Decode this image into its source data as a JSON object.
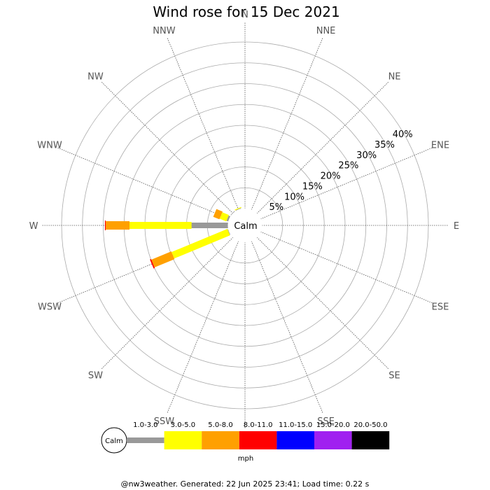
{
  "title": "Wind rose for 15 Dec 2021",
  "footer": "@nw3weather. Generated: 22 Jun 2025 23:41; Load time: 0.22 s",
  "calm_label": "Calm",
  "legend": {
    "calm_label": "Calm",
    "unit": "mph",
    "bins": [
      {
        "label": "1.0-3.0",
        "color": "#999999"
      },
      {
        "label": "3.0-5.0",
        "color": "#ffff00"
      },
      {
        "label": "5.0-8.0",
        "color": "#ffa000"
      },
      {
        "label": "8.0-11.0",
        "color": "#ff0000"
      },
      {
        "label": "11.0-15.0",
        "color": "#0000ff"
      },
      {
        "label": "15.0-20.0",
        "color": "#a020f0"
      },
      {
        "label": "20.0-50.0",
        "color": "#000000"
      }
    ]
  },
  "chart_data": {
    "type": "windrose",
    "title": "Wind rose for 15 Dec 2021",
    "unit": "mph",
    "directions": [
      "N",
      "NNE",
      "NE",
      "ENE",
      "E",
      "ESE",
      "SE",
      "SSE",
      "S",
      "SSW",
      "SW",
      "WSW",
      "W",
      "WNW",
      "NW",
      "NNW"
    ],
    "radial_ticks": [
      "5%",
      "10%",
      "15%",
      "20%",
      "25%",
      "30%",
      "35%",
      "40%"
    ],
    "radial_max": 40,
    "speed_bins": [
      "1.0-3.0",
      "3.0-5.0",
      "5.0-8.0",
      "8.0-11.0",
      "11.0-15.0",
      "15.0-20.0",
      "20.0-50.0"
    ],
    "series": [
      {
        "name": "1.0-3.0",
        "color": "#999999",
        "values": [
          0,
          0,
          0,
          0,
          0,
          0,
          0,
          0,
          0,
          0,
          0,
          0.2,
          8.8,
          0.5,
          0.2,
          0.2
        ]
      },
      {
        "name": "3.0-5.0",
        "color": "#ffff00",
        "values": [
          0,
          0,
          0,
          0,
          0,
          0,
          0,
          0,
          0,
          0,
          0,
          14.5,
          14.9,
          1.7,
          0,
          0.2
        ]
      },
      {
        "name": "5.0-8.0",
        "color": "#ffa000",
        "values": [
          0,
          0,
          0,
          0,
          0,
          0,
          0,
          0,
          0,
          0,
          0,
          5.2,
          5.7,
          1.6,
          0,
          0
        ]
      },
      {
        "name": "8.0-11.0",
        "color": "#ff0000",
        "values": [
          0,
          0,
          0,
          0,
          0,
          0,
          0,
          0,
          0,
          0,
          0,
          0.3,
          0.2,
          0,
          0,
          0
        ]
      },
      {
        "name": "11.0-15.0",
        "color": "#0000ff",
        "values": [
          0,
          0,
          0,
          0,
          0,
          0,
          0,
          0,
          0,
          0,
          0,
          0,
          0,
          0,
          0,
          0
        ]
      },
      {
        "name": "15.0-20.0",
        "color": "#a020f0",
        "values": [
          0,
          0,
          0,
          0,
          0,
          0,
          0,
          0,
          0,
          0,
          0,
          0,
          0,
          0,
          0,
          0
        ]
      },
      {
        "name": "20.0-50.0",
        "color": "#000000",
        "values": [
          0,
          0,
          0,
          0,
          0,
          0,
          0,
          0,
          0,
          0,
          0,
          0,
          0,
          0,
          0,
          0
        ]
      }
    ]
  }
}
